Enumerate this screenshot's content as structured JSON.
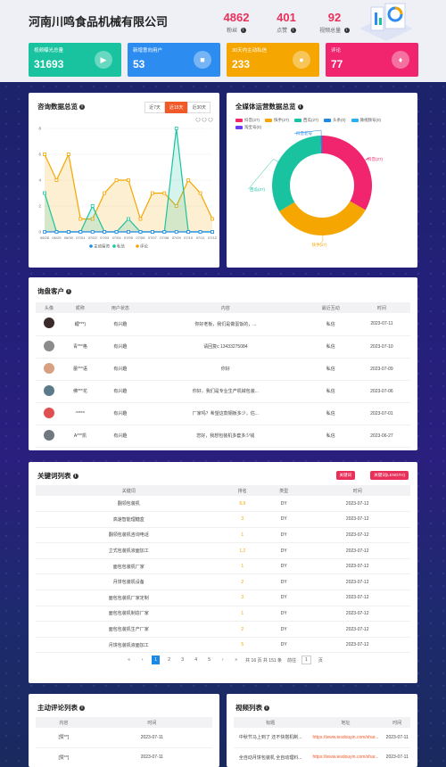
{
  "header": {
    "company": "河南川鸣食品机械有限公司",
    "stats": [
      {
        "value": "4862",
        "label": "粉丝"
      },
      {
        "value": "401",
        "label": "点赞"
      },
      {
        "value": "92",
        "label": "视频总量"
      }
    ]
  },
  "cards": [
    {
      "title": "视频曝光总量",
      "value": "31693",
      "color": "#19c3a0",
      "icon": "play-icon"
    },
    {
      "title": "新增意向用户",
      "value": "53",
      "color": "#2d8cf0",
      "icon": "video-icon"
    },
    {
      "title": "30天内主动私信",
      "value": "233",
      "color": "#f5a600",
      "icon": "chat-icon"
    },
    {
      "title": "评论",
      "value": "77",
      "color": "#f0256e",
      "icon": "users-icon"
    }
  ],
  "consult": {
    "title": "咨询数据总览",
    "tabs": [
      "近7天",
      "近15天",
      "近30天"
    ],
    "active_tab": 1,
    "chart_data": {
      "type": "line",
      "x": [
        "06/28",
        "06/29",
        "06/30",
        "07/01",
        "07/02",
        "07/03",
        "07/04",
        "07/05",
        "07/06",
        "07/07",
        "07/08",
        "07/09",
        "07/10",
        "07/11",
        "07/12"
      ],
      "yticks": [
        "0",
        "2",
        "4",
        "6",
        "8"
      ],
      "ylim": [
        0,
        8
      ],
      "series": [
        {
          "name": "主动留资",
          "color": "#1e88e5",
          "values": [
            0,
            0,
            0,
            0,
            0,
            0,
            0,
            0,
            0,
            0,
            0,
            0,
            0,
            0,
            0
          ]
        },
        {
          "name": "私信",
          "color": "#19c3a0",
          "values": [
            3,
            0,
            0,
            0,
            2,
            0,
            0,
            1,
            0,
            0,
            0,
            8,
            0,
            0,
            0
          ]
        },
        {
          "name": "评论",
          "color": "#f5a600",
          "values": [
            6,
            4,
            6,
            1,
            1,
            3,
            4,
            4,
            1,
            3,
            3,
            2,
            4,
            3,
            1
          ]
        }
      ]
    }
  },
  "media": {
    "title": "全媒体运营数据总览",
    "legend": [
      "抖音(27)",
      "快手(27)",
      "西瓜(27)",
      "头条(0)",
      "微视频号(0)",
      "淘宝号(0)"
    ],
    "legend_colors": [
      "#f0256e",
      "#f5a600",
      "#19c3a0",
      "#1e88e5",
      "#2ab0f0",
      "#6a3cf0"
    ],
    "chart_data": {
      "type": "pie",
      "labels": [
        "抖音(27)",
        "快手(27)",
        "西瓜(27)",
        "抖音老号"
      ],
      "values": [
        27,
        27,
        27,
        0.4
      ],
      "colors": [
        "#f0256e",
        "#f5a600",
        "#19c3a0",
        "#1e88e5"
      ]
    }
  },
  "customers": {
    "title": "询盘客户",
    "columns": [
      "头像",
      "昵称",
      "用户状态",
      "内容",
      "最近互动",
      "时间"
    ],
    "rows": [
      {
        "avatar": "#3a2a2a",
        "nick": "鲤***)",
        "status": "有兴趣",
        "content": "你好老板，我们是做蛋饭的，...",
        "act": "私信",
        "time": "2023-07-11"
      },
      {
        "avatar": "#8c8c8c",
        "nick": "青***格",
        "status": "有兴趣",
        "content": "请回复c 13433275084",
        "act": "私信",
        "time": "2023-07-10"
      },
      {
        "avatar": "#d8a080",
        "nick": "蕾***语",
        "status": "有兴趣",
        "content": "你好",
        "act": "私信",
        "time": "2023-07-09"
      },
      {
        "avatar": "#5a7a8a",
        "nick": "佛***花",
        "status": "有兴趣",
        "content": "你好，我们是专业生产机械包装...",
        "act": "私信",
        "time": "2023-07-06"
      },
      {
        "avatar": "#e05050",
        "nick": "^***^",
        "status": "有兴趣",
        "content": "厂家吗？希望这款钢板多少，估...",
        "act": "私信",
        "time": "2023-07-01"
      },
      {
        "avatar": "#707880",
        "nick": "A***凯",
        "status": "有兴趣",
        "content": "您好，我想包装机多套多少钱",
        "act": "私信",
        "time": "2023-06-27"
      }
    ]
  },
  "keywords": {
    "title": "关键词列表",
    "btn1": "关键词",
    "btn2": "关键词(LENGTH)",
    "columns": [
      "关键词",
      "排名",
      "类型",
      "时间"
    ],
    "rows": [
      {
        "kw": "翻领包装机",
        "rank": "8,9",
        "type": "DY",
        "time": "2023-07-12"
      },
      {
        "kw": "高速智能理糖盒",
        "rank": "3",
        "type": "DY",
        "time": "2023-07-12"
      },
      {
        "kw": "翻领包装机咨询电话",
        "rank": "1",
        "type": "DY",
        "time": "2023-07-12"
      },
      {
        "kw": "立式包装机液面加工",
        "rank": "1,2",
        "type": "DY",
        "time": "2023-07-12"
      },
      {
        "kw": "面包包装机厂家",
        "rank": "1",
        "type": "DY",
        "time": "2023-07-12"
      },
      {
        "kw": "月饼包装机设备",
        "rank": "2",
        "type": "DY",
        "time": "2023-07-12"
      },
      {
        "kw": "面包包装机厂家定制",
        "rank": "3",
        "type": "DY",
        "time": "2023-07-12"
      },
      {
        "kw": "面包包装机制造厂家",
        "rank": "1",
        "type": "DY",
        "time": "2023-07-12"
      },
      {
        "kw": "面包包装机生产厂家",
        "rank": "2",
        "type": "DY",
        "time": "2023-07-12"
      },
      {
        "kw": "月饼包装机液面加工",
        "rank": "5",
        "type": "DY",
        "time": "2023-07-12"
      }
    ],
    "pager": {
      "prev2": "«",
      "prev": "‹",
      "pages": [
        "1",
        "2",
        "3",
        "4",
        "5"
      ],
      "current": "1",
      "next": "›",
      "next2": "»",
      "total": "共 16 页 共 151 条",
      "goto": "前往",
      "page_input": "1",
      "page_unit": "页"
    }
  },
  "comments": {
    "title": "主动评论列表",
    "columns": [
      "内容",
      "时间"
    ],
    "rows": [
      {
        "content": "[赞**]",
        "time": "2023-07-11"
      },
      {
        "content": "[赞**]",
        "time": "2023-07-11"
      }
    ]
  },
  "videos": {
    "title": "视频列表",
    "columns": [
      "标题",
      "地址",
      "时间"
    ],
    "rows": [
      {
        "title": "中秋节马上到了 还不快搭机制...",
        "url": "https://www.iesdouyin.com/shar...",
        "time": "2023-07-11"
      },
      {
        "title": "全自动月饼包装机 全自动理料...",
        "url": "https://www.iesdouyin.com/shar...",
        "time": "2023-07-11"
      }
    ]
  }
}
